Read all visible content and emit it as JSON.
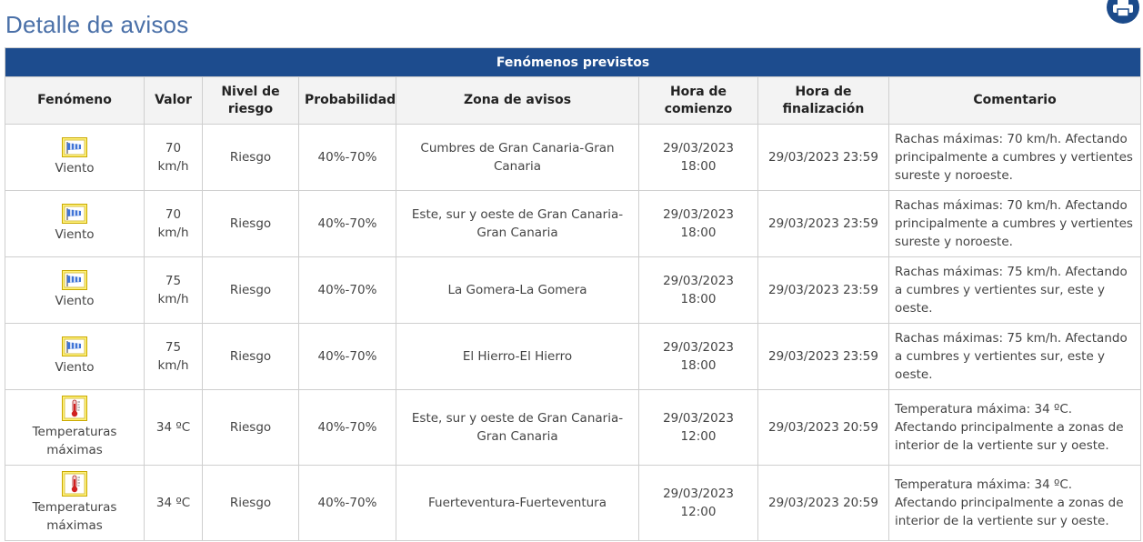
{
  "page": {
    "title": "Detalle de avisos"
  },
  "icons": {
    "print": "printer-icon",
    "viento": "wind-sock-icon",
    "temperatura": "thermometer-icon"
  },
  "table": {
    "caption": "Fenómenos previstos",
    "headers": {
      "fenomeno": "Fenómeno",
      "valor": "Valor",
      "nivel": "Nivel de riesgo",
      "probabilidad": "Probabilidad",
      "zona": "Zona de avisos",
      "comienzo": "Hora de comienzo",
      "finalizacion": "Hora de finalización",
      "comentario": "Comentario"
    },
    "rows": [
      {
        "fenomeno": "Viento",
        "valor": "70 km/h",
        "nivel": "Riesgo",
        "probabilidad": "40%-70%",
        "zona": "Cumbres de Gran Canaria-Gran Canaria",
        "comienzo": "29/03/2023 18:00",
        "finalizacion": "29/03/2023 23:59",
        "comentario": "Rachas máximas: 70 km/h. Afectando principalmente a cumbres y vertientes sureste y noroeste."
      },
      {
        "fenomeno": "Viento",
        "valor": "70 km/h",
        "nivel": "Riesgo",
        "probabilidad": "40%-70%",
        "zona": "Este, sur y oeste de Gran Canaria-Gran Canaria",
        "comienzo": "29/03/2023 18:00",
        "finalizacion": "29/03/2023 23:59",
        "comentario": "Rachas máximas: 70 km/h. Afectando principalmente a cumbres y vertientes sureste y noroeste."
      },
      {
        "fenomeno": "Viento",
        "valor": "75 km/h",
        "nivel": "Riesgo",
        "probabilidad": "40%-70%",
        "zona": "La Gomera-La Gomera",
        "comienzo": "29/03/2023 18:00",
        "finalizacion": "29/03/2023 23:59",
        "comentario": "Rachas máximas: 75 km/h. Afectando a cumbres y vertientes sur, este y oeste."
      },
      {
        "fenomeno": "Viento",
        "valor": "75 km/h",
        "nivel": "Riesgo",
        "probabilidad": "40%-70%",
        "zona": "El Hierro-El Hierro",
        "comienzo": "29/03/2023 18:00",
        "finalizacion": "29/03/2023 23:59",
        "comentario": "Rachas máximas: 75 km/h. Afectando a cumbres y vertientes sur, este y oeste."
      },
      {
        "fenomeno": "Temperaturas máximas",
        "valor": "34 ºC",
        "nivel": "Riesgo",
        "probabilidad": "40%-70%",
        "zona": "Este, sur y oeste de Gran Canaria-Gran Canaria",
        "comienzo": "29/03/2023 12:00",
        "finalizacion": "29/03/2023 20:59",
        "comentario": "Temperatura máxima: 34 ºC. Afectando principalmente a zonas de interior de la vertiente sur y oeste."
      },
      {
        "fenomeno": "Temperaturas máximas",
        "valor": "34 ºC",
        "nivel": "Riesgo",
        "probabilidad": "40%-70%",
        "zona": "Fuerteventura-Fuerteventura",
        "comienzo": "29/03/2023 12:00",
        "finalizacion": "29/03/2023 20:59",
        "comentario": "Temperatura máxima: 34 ºC. Afectando principalmente a zonas de interior de la vertiente sur y oeste."
      }
    ]
  }
}
